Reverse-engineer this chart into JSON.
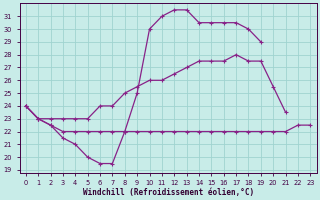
{
  "bg_color": "#c8ece8",
  "grid_color": "#a0d4d0",
  "line_color": "#882288",
  "xlabel": "Windchill (Refroidissement éolien,°C)",
  "xlim": [
    -0.5,
    23.5
  ],
  "ylim": [
    18.8,
    32.0
  ],
  "ytick_vals": [
    19,
    20,
    21,
    22,
    23,
    24,
    25,
    26,
    27,
    28,
    29,
    30,
    31
  ],
  "xtick_vals": [
    0,
    1,
    2,
    3,
    4,
    5,
    6,
    7,
    8,
    9,
    10,
    11,
    12,
    13,
    14,
    15,
    16,
    17,
    18,
    19,
    20,
    21,
    22,
    23
  ],
  "line1": {
    "x": [
      0,
      1,
      2,
      3,
      4,
      5,
      6,
      7,
      8,
      9,
      10,
      11,
      12,
      13,
      14,
      15,
      16,
      17,
      18,
      19
    ],
    "y": [
      24,
      23,
      22.5,
      21.5,
      21,
      20,
      19.5,
      19.5,
      22,
      25,
      30,
      31,
      31.5,
      31.5,
      30.5,
      30.5,
      30.5,
      30.5,
      30,
      29
    ]
  },
  "line2": {
    "x": [
      0,
      1,
      2,
      3,
      4,
      5,
      6,
      7,
      8,
      9,
      10,
      11,
      12,
      13,
      14,
      15,
      16,
      17,
      18,
      19,
      20,
      21,
      22,
      23
    ],
    "y": [
      24,
      23,
      22.5,
      22,
      22,
      22,
      22,
      22,
      22,
      22,
      22,
      22,
      22,
      22,
      22,
      22,
      22,
      22,
      22,
      22,
      22,
      22,
      22.5,
      22.5
    ]
  },
  "line3": {
    "x": [
      0,
      1,
      2,
      3,
      4,
      5,
      6,
      7,
      8,
      9,
      10,
      11,
      12,
      13,
      14,
      15,
      16,
      17,
      18,
      19,
      20,
      21,
      22,
      23
    ],
    "y": [
      24,
      23,
      23,
      23,
      23,
      23,
      24,
      24,
      25,
      25.5,
      26,
      26,
      26.5,
      27,
      27.5,
      27.5,
      27.5,
      28,
      27.5,
      27.5,
      25.5,
      23.5,
      null,
      null
    ]
  }
}
